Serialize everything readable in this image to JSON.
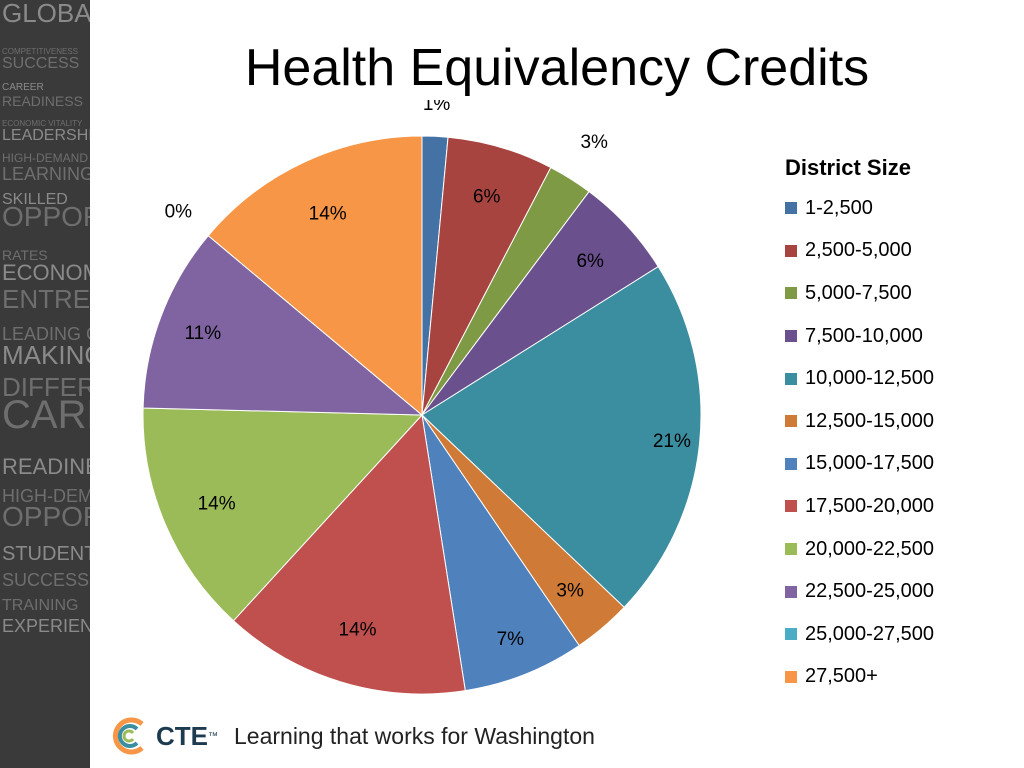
{
  "title": "Health Equivalency Credits",
  "legend_title": "District Size",
  "footer": {
    "logo_text": "CTE",
    "tm": "™",
    "tagline": "Learning that works for Washington"
  },
  "side_strip_words": [
    "GLOBAL",
    "COMPETITIVENESS",
    "SUCCESS",
    "CAREER",
    "READINESS",
    "ECONOMIC VITALITY",
    "LEADERSHIP",
    "HIGH-DEMAND",
    "LEARNING",
    "SKILLED",
    "OPPORTUNITY",
    "RATES",
    "ECONOMIC",
    "ENTREPRENEURSHIP",
    "LEADING CHANGE",
    "MAKING A",
    "DIFFERENCE",
    "CAREER",
    "READINESS",
    "HIGH-DEMAND",
    "OPPORTUNITY",
    "STUDENT",
    "SUCCESS",
    "TRAINING",
    "EXPERIENCE"
  ],
  "chart_data": {
    "type": "pie",
    "title": "Health Equivalency Credits",
    "legend_title": "District Size",
    "legend_position": "right",
    "categories": [
      "1-2,500",
      "2,500-5,000",
      "5,000-7,500",
      "7,500-10,000",
      "10,000-12,500",
      "12,500-15,000",
      "15,000-17,500",
      "17,500-20,000",
      "20,000-22,500",
      "22,500-25,000",
      "25,000-27,500",
      "27,500+"
    ],
    "values": [
      1.5,
      6.2,
      2.6,
      5.9,
      21.2,
      3.4,
      7.1,
      14.4,
      13.7,
      10.8,
      0.0,
      14.0
    ],
    "labels": [
      "1%",
      "6%",
      "3%",
      "6%",
      "21%",
      "3%",
      "7%",
      "14%",
      "14%",
      "11%",
      "0%",
      "14%"
    ],
    "colors": [
      "#4472a4",
      "#a84440",
      "#7f9a45",
      "#6a508c",
      "#3b8da0",
      "#cf7b37",
      "#4f81bd",
      "#c0504d",
      "#9bbb59",
      "#8064a2",
      "#4bacc6",
      "#f79646"
    ]
  }
}
